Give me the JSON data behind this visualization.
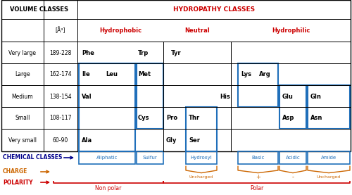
{
  "fig_width": 5.0,
  "fig_height": 2.77,
  "dpi": 100,
  "background": "#ffffff",
  "title_hydropathy": "HYDROPATHY CLASSES",
  "title_volume": "VOLUME CLASSES",
  "hydropathy_color": "#cc0000",
  "blue_box_color": "#1f6fba",
  "orange_color": "#cc6600",
  "blue_label_color": "#00008B",
  "row_labels": [
    "Very large",
    "Large",
    "Medium",
    "Small",
    "Very small"
  ],
  "row_ranges": [
    "189-228",
    "162-174",
    "138-154",
    "108-117",
    "60-90"
  ],
  "charge_labels": [
    "Uncharged",
    "+",
    "-",
    "Uncharged"
  ],
  "polarity_labels": [
    "Non polar",
    "Polar"
  ]
}
